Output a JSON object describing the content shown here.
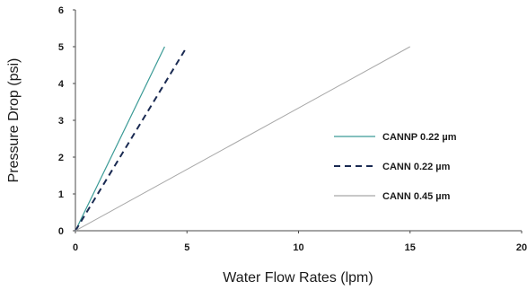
{
  "chart_data": {
    "type": "line",
    "title": "",
    "xlabel": "Water Flow Rates (lpm)",
    "ylabel": "Pressure Drop (psi)",
    "xlim": [
      0,
      20
    ],
    "ylim": [
      0,
      6
    ],
    "xticks": [
      0,
      5,
      10,
      15,
      20
    ],
    "yticks": [
      0,
      1,
      2,
      3,
      4,
      5,
      6
    ],
    "grid": false,
    "legend_position": "right",
    "series": [
      {
        "name": "CANNP 0.22 µm",
        "color": "#3a9a96",
        "dash": "solid",
        "points": [
          [
            0,
            0
          ],
          [
            4,
            5
          ]
        ]
      },
      {
        "name": "CANN 0.22 µm",
        "color": "#1a2a52",
        "dash": "dashed",
        "points": [
          [
            0,
            0
          ],
          [
            5,
            5
          ]
        ]
      },
      {
        "name": "CANN 0.45 µm",
        "color": "#a8a8a8",
        "dash": "solid",
        "points": [
          [
            0,
            0
          ],
          [
            15,
            5
          ]
        ]
      }
    ]
  }
}
